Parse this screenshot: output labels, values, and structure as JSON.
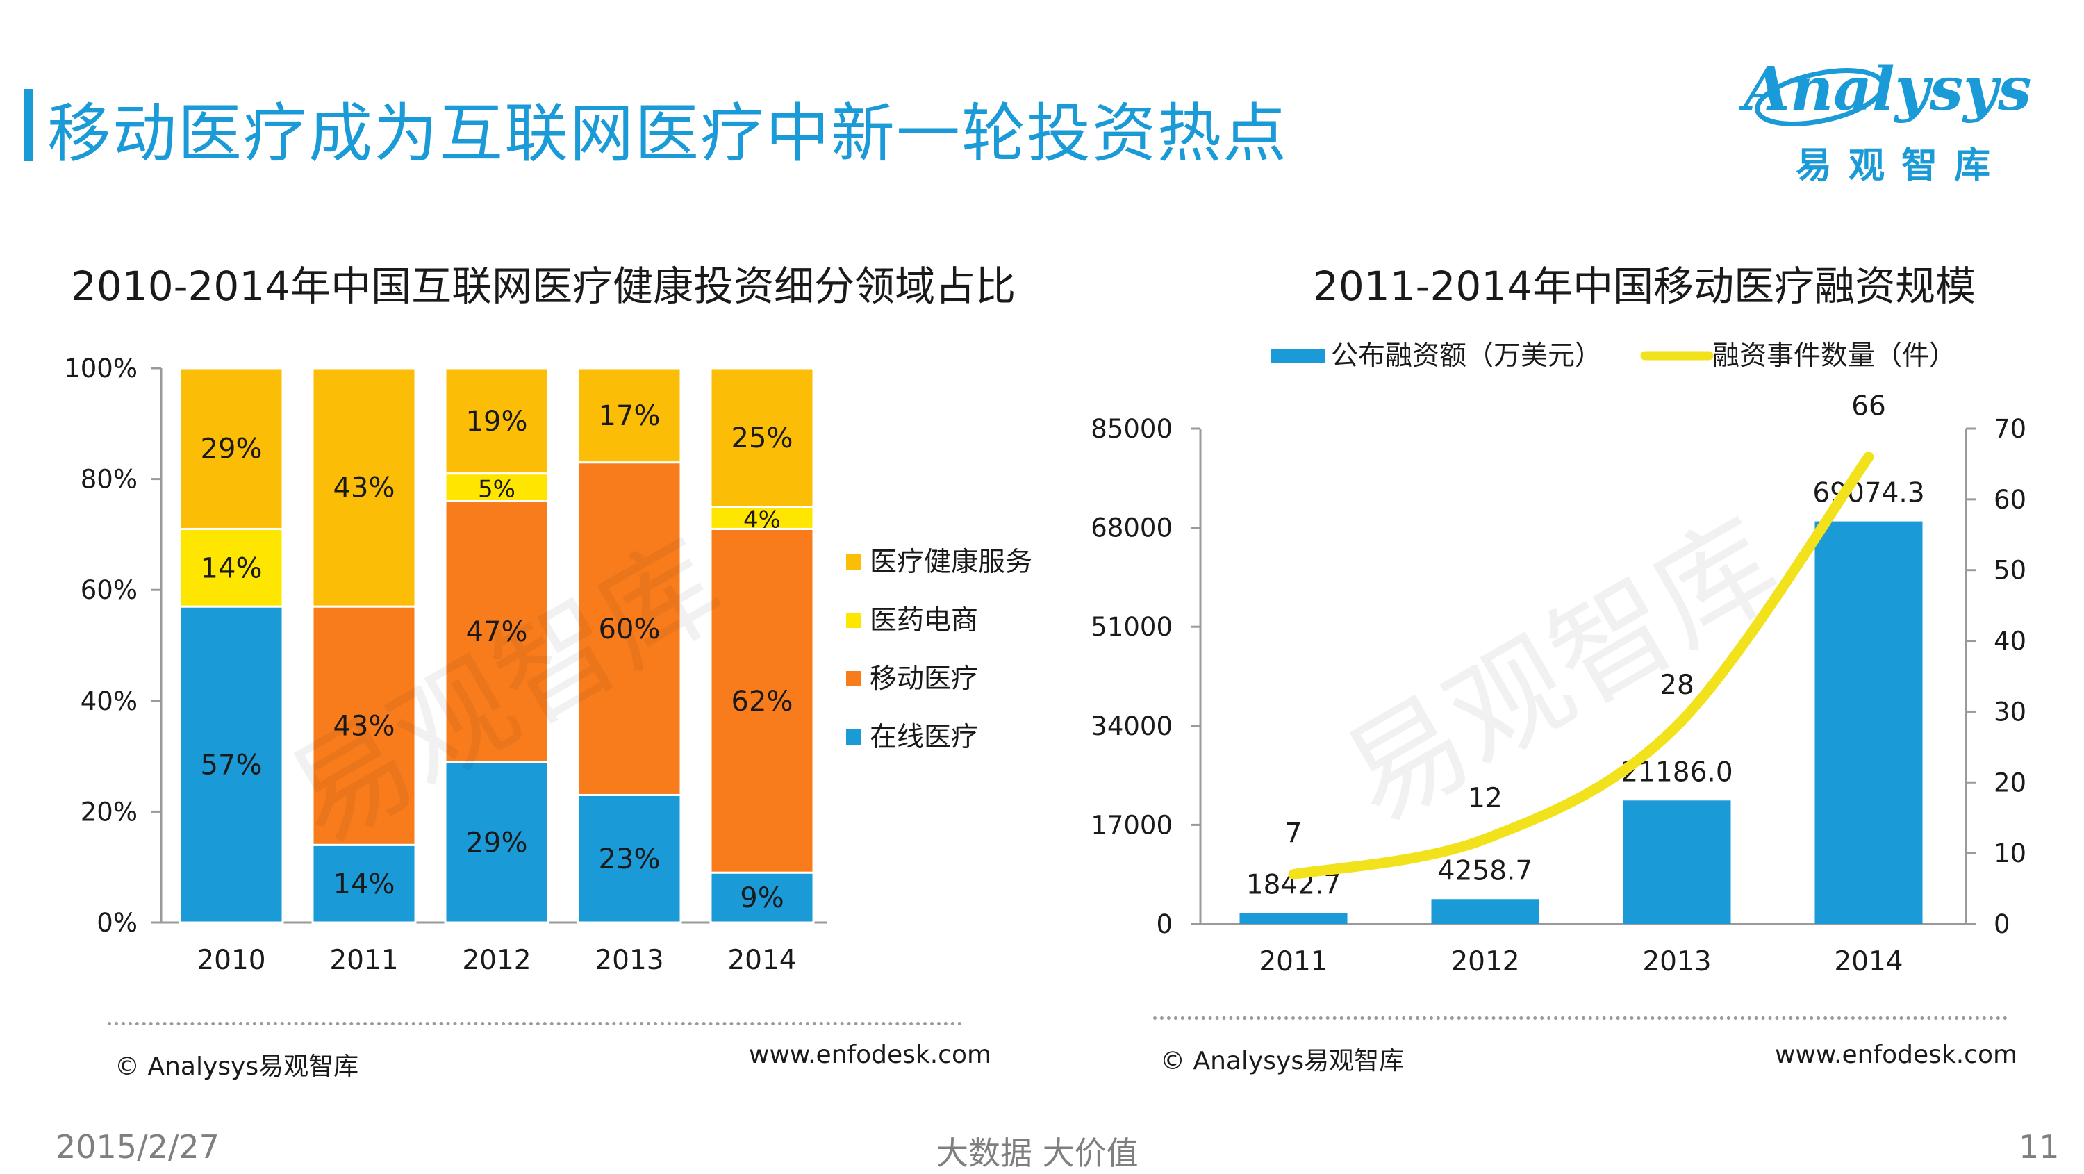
{
  "page": {
    "title": "移动医疗成为互联网医疗中新一轮投资热点",
    "date": "2015/2/27",
    "slogan": "大数据    大价值",
    "page_number": "11"
  },
  "logo": {
    "word": "Analysys",
    "cn": "易观智库"
  },
  "watermark": "易观智库",
  "colors": {
    "accent": "#1a9ad6",
    "blue": "#1a9ad6",
    "orange": "#f87c1c",
    "gold": "#fbbd06",
    "yellow": "#ffe600",
    "line": "#f2e21c"
  },
  "footer": {
    "left_source": "© Analysys易观智库",
    "left_url": "www.enfodesk.com",
    "right_source": "© Analysys易观智库",
    "right_url": "www.enfodesk.com"
  },
  "chart_data": [
    {
      "type": "bar",
      "stacked": true,
      "title": "2010-2014年中国互联网医疗健康投资细分领域占比",
      "categories": [
        "2010",
        "2011",
        "2012",
        "2013",
        "2014"
      ],
      "series": [
        {
          "name": "在线医疗",
          "values": [
            57,
            14,
            29,
            23,
            9
          ],
          "color": "#1a9ad6"
        },
        {
          "name": "移动医疗",
          "values": [
            0,
            43,
            47,
            60,
            62
          ],
          "color": "#f87c1c"
        },
        {
          "name": "医药电商",
          "values": [
            14,
            0,
            5,
            0,
            4
          ],
          "color": "#ffe600"
        },
        {
          "name": "医疗健康服务",
          "values": [
            29,
            43,
            19,
            17,
            25
          ],
          "color": "#fbbd06"
        }
      ],
      "legend_order": [
        "医疗健康服务",
        "医药电商",
        "移动医疗",
        "在线医疗"
      ],
      "yticks": [
        "0%",
        "20%",
        "40%",
        "60%",
        "80%",
        "100%"
      ],
      "ylim": [
        0,
        100
      ],
      "legend": "right"
    },
    {
      "type": "bar+line",
      "title": "2011-2014年中国移动医疗融资规模",
      "categories": [
        "2011",
        "2012",
        "2013",
        "2014"
      ],
      "bar_series": {
        "name": "公布融资额（万美元）",
        "values": [
          1842.7,
          4258.7,
          21186.0,
          69074.3
        ],
        "labels": [
          "1842.7",
          "4258.7",
          "21186.0",
          "69074.3"
        ],
        "color": "#1a9ad6"
      },
      "line_series": {
        "name": "融资事件数量（件）",
        "values": [
          7,
          12,
          28,
          66
        ],
        "labels": [
          "7",
          "12",
          "28",
          "66"
        ],
        "color": "#f2e21c"
      },
      "legend_labels": [
        "公布融资额（万美元）",
        "融资事件数量（件）"
      ],
      "ylim_left": [
        0,
        85000
      ],
      "yticks_left": [
        "0",
        "17000",
        "34000",
        "51000",
        "68000",
        "85000"
      ],
      "ylim_right": [
        0,
        70
      ],
      "yticks_right": [
        "0",
        "10",
        "20",
        "30",
        "40",
        "50",
        "60",
        "70"
      ],
      "legend": "top"
    }
  ]
}
